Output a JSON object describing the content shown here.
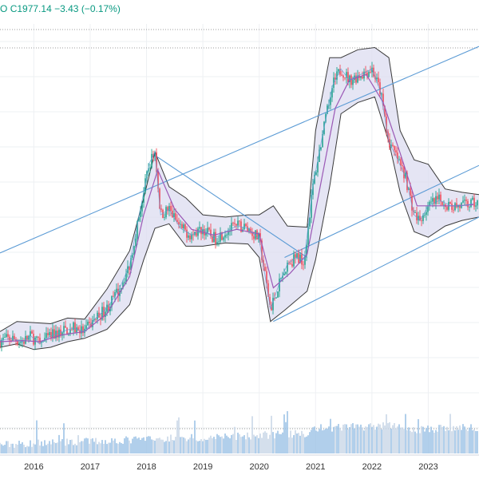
{
  "header": {
    "prefix": "O",
    "close_label": "C",
    "close_value": "1977.14",
    "change": "−3.43",
    "change_pct": "(−0.17%)"
  },
  "colors": {
    "up": "#089981",
    "down": "#f23645",
    "band_fill": "#dcdcf0",
    "band_edge": "#3a3a3a",
    "trendline": "#5b9bd5",
    "ma_line": "#9b59b6",
    "volume": "#9ec3e6",
    "grid": "#eef0f3",
    "dotted": "#9e9e9e"
  },
  "chart_data": {
    "type": "line",
    "title": "",
    "xlabel": "",
    "ylabel": "",
    "x_ticks": [
      "2016",
      "2017",
      "2018",
      "2019",
      "2020",
      "2021",
      "2022",
      "2023"
    ],
    "xlim": [
      2015.4,
      2023.9
    ],
    "ylim": [
      1500,
      4700
    ],
    "grid": true,
    "series": [
      {
        "role": "price",
        "points": [
          [
            2015.4,
            1880
          ],
          [
            2015.6,
            1900
          ],
          [
            2015.8,
            1870
          ],
          [
            2015.95,
            1920
          ],
          [
            2016.1,
            1850
          ],
          [
            2016.3,
            1920
          ],
          [
            2016.5,
            1960
          ],
          [
            2016.7,
            1990
          ],
          [
            2016.9,
            1960
          ],
          [
            2017.1,
            2080
          ],
          [
            2017.3,
            2170
          ],
          [
            2017.5,
            2320
          ],
          [
            2017.7,
            2550
          ],
          [
            2017.85,
            2950
          ],
          [
            2017.95,
            3200
          ],
          [
            2018.05,
            3460
          ],
          [
            2018.15,
            3560
          ],
          [
            2018.25,
            3000
          ],
          [
            2018.4,
            3050
          ],
          [
            2018.6,
            2880
          ],
          [
            2018.8,
            2820
          ],
          [
            2019.0,
            2870
          ],
          [
            2019.2,
            2790
          ],
          [
            2019.4,
            2850
          ],
          [
            2019.6,
            2900
          ],
          [
            2019.8,
            2880
          ],
          [
            2020.0,
            2780
          ],
          [
            2020.2,
            2160
          ],
          [
            2020.35,
            2380
          ],
          [
            2020.5,
            2560
          ],
          [
            2020.65,
            2620
          ],
          [
            2020.8,
            2600
          ],
          [
            2020.95,
            3250
          ],
          [
            2021.1,
            3650
          ],
          [
            2021.3,
            4150
          ],
          [
            2021.45,
            4300
          ],
          [
            2021.6,
            4200
          ],
          [
            2021.8,
            4250
          ],
          [
            2022.0,
            4300
          ],
          [
            2022.15,
            4100
          ],
          [
            2022.3,
            3650
          ],
          [
            2022.45,
            3500
          ],
          [
            2022.6,
            3330
          ],
          [
            2022.75,
            3000
          ],
          [
            2022.85,
            2950
          ],
          [
            2023.0,
            3080
          ],
          [
            2023.2,
            3130
          ],
          [
            2023.4,
            3080
          ],
          [
            2023.6,
            3080
          ],
          [
            2023.8,
            3100
          ]
        ]
      },
      {
        "role": "moving-average",
        "points": [
          [
            2015.4,
            1870
          ],
          [
            2015.8,
            1880
          ],
          [
            2016.1,
            1870
          ],
          [
            2016.5,
            1930
          ],
          [
            2016.9,
            1960
          ],
          [
            2017.3,
            2120
          ],
          [
            2017.7,
            2450
          ],
          [
            2017.95,
            3000
          ],
          [
            2018.2,
            3400
          ],
          [
            2018.5,
            3050
          ],
          [
            2018.8,
            2870
          ],
          [
            2019.2,
            2820
          ],
          [
            2019.6,
            2870
          ],
          [
            2020.0,
            2830
          ],
          [
            2020.25,
            2350
          ],
          [
            2020.55,
            2480
          ],
          [
            2020.85,
            2650
          ],
          [
            2021.1,
            3300
          ],
          [
            2021.35,
            3950
          ],
          [
            2021.6,
            4200
          ],
          [
            2021.9,
            4250
          ],
          [
            2022.2,
            4000
          ],
          [
            2022.5,
            3550
          ],
          [
            2022.8,
            3080
          ],
          [
            2023.1,
            3080
          ],
          [
            2023.5,
            3080
          ],
          [
            2023.8,
            3090
          ]
        ]
      },
      {
        "role": "band-upper",
        "points": [
          [
            2015.4,
            1960
          ],
          [
            2015.7,
            2050
          ],
          [
            2016.0,
            2040
          ],
          [
            2016.3,
            2030
          ],
          [
            2016.6,
            2080
          ],
          [
            2016.9,
            2070
          ],
          [
            2017.3,
            2340
          ],
          [
            2017.7,
            2680
          ],
          [
            2017.95,
            3150
          ],
          [
            2018.15,
            3560
          ],
          [
            2018.4,
            3250
          ],
          [
            2018.7,
            3150
          ],
          [
            2019.0,
            3000
          ],
          [
            2019.4,
            2980
          ],
          [
            2019.8,
            3000
          ],
          [
            2020.0,
            3000
          ],
          [
            2020.25,
            3080
          ],
          [
            2020.5,
            2900
          ],
          [
            2020.85,
            2890
          ],
          [
            2021.0,
            3750
          ],
          [
            2021.25,
            4400
          ],
          [
            2021.45,
            4400
          ],
          [
            2021.75,
            4470
          ],
          [
            2022.05,
            4490
          ],
          [
            2022.3,
            4400
          ],
          [
            2022.5,
            3750
          ],
          [
            2022.75,
            3490
          ],
          [
            2023.0,
            3450
          ],
          [
            2023.3,
            3230
          ],
          [
            2023.6,
            3200
          ],
          [
            2023.9,
            3180
          ]
        ]
      },
      {
        "role": "band-lower",
        "points": [
          [
            2015.4,
            1820
          ],
          [
            2015.7,
            1850
          ],
          [
            2016.0,
            1800
          ],
          [
            2016.3,
            1820
          ],
          [
            2016.6,
            1870
          ],
          [
            2016.9,
            1900
          ],
          [
            2017.3,
            1980
          ],
          [
            2017.7,
            2200
          ],
          [
            2017.95,
            2600
          ],
          [
            2018.15,
            2880
          ],
          [
            2018.4,
            2920
          ],
          [
            2018.7,
            2720
          ],
          [
            2019.0,
            2720
          ],
          [
            2019.4,
            2750
          ],
          [
            2019.8,
            2740
          ],
          [
            2020.0,
            2620
          ],
          [
            2020.2,
            2050
          ],
          [
            2020.45,
            2150
          ],
          [
            2020.85,
            2320
          ],
          [
            2021.0,
            2600
          ],
          [
            2021.25,
            3250
          ],
          [
            2021.45,
            3900
          ],
          [
            2021.75,
            4000
          ],
          [
            2022.05,
            4050
          ],
          [
            2022.3,
            3650
          ],
          [
            2022.5,
            3200
          ],
          [
            2022.75,
            2850
          ],
          [
            2023.0,
            2800
          ],
          [
            2023.3,
            2900
          ],
          [
            2023.6,
            2950
          ],
          [
            2023.9,
            2980
          ]
        ]
      },
      {
        "role": "trendline",
        "points": [
          [
            2015.4,
            2660
          ],
          [
            2023.9,
            4500
          ]
        ]
      },
      {
        "role": "trendline",
        "points": [
          [
            2020.45,
            2620
          ],
          [
            2023.9,
            3440
          ]
        ]
      },
      {
        "role": "trendline",
        "points": [
          [
            2020.25,
            2050
          ],
          [
            2023.9,
            2980
          ]
        ]
      },
      {
        "role": "trendline",
        "points": [
          [
            2018.15,
            3530
          ],
          [
            2020.85,
            2620
          ]
        ]
      }
    ]
  }
}
